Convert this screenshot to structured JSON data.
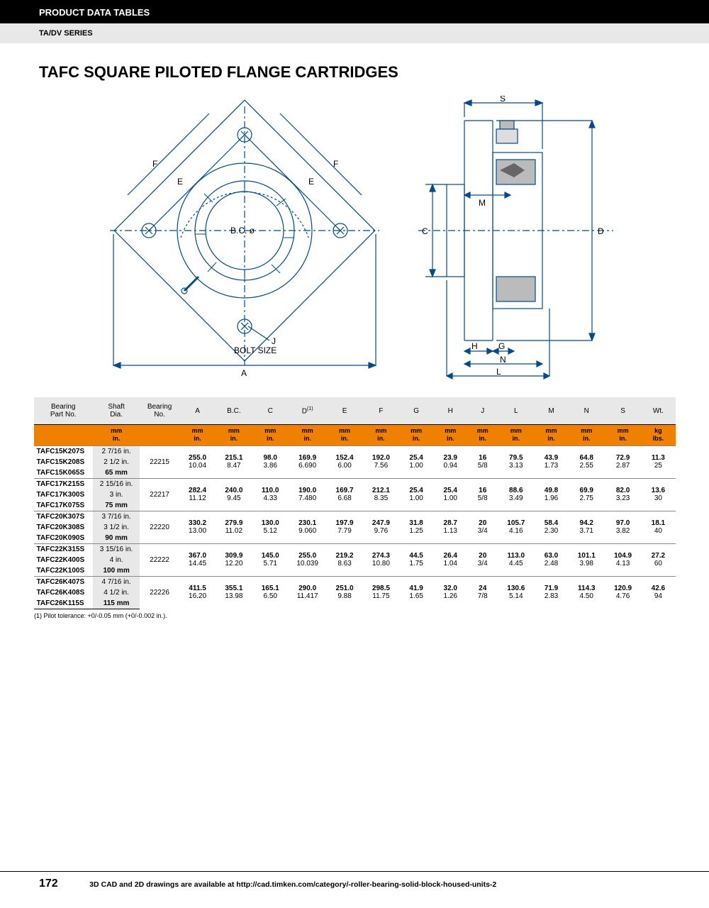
{
  "header": {
    "label": "PRODUCT DATA TABLES",
    "series": "TA/DV SERIES"
  },
  "title": "TAFC SQUARE PILOTED FLANGE CARTRIDGES",
  "diagram": {
    "front_labels": {
      "F1": "F",
      "E1": "E",
      "F2": "F",
      "E2": "E",
      "BC": "B.C. ø",
      "J": "J",
      "bolt": "BOLT SIZE",
      "A": "A"
    },
    "side_labels": {
      "S": "S",
      "C": "C",
      "D": "D",
      "M": "M",
      "H": "H",
      "G": "G",
      "N": "N",
      "L": "L"
    },
    "stroke": "#004a8f",
    "text_color": "#000",
    "fontsize": 11
  },
  "table": {
    "columns": [
      "Bearing\nPart No.",
      "Shaft\nDia.",
      "Bearing\nNo.",
      "A",
      "B.C.",
      "C",
      "D",
      "E",
      "F",
      "G",
      "H",
      "J",
      "L",
      "M",
      "N",
      "S",
      "Wt."
    ],
    "d_sup": "(1)",
    "unit_mm": "mm",
    "unit_in": "in.",
    "unit_kg": "kg",
    "unit_lbs": "lbs.",
    "header_bg": "#e8e8e8",
    "units_bg": "#f08000",
    "groups": [
      {
        "rows": [
          {
            "part": "TAFC15K207S",
            "shaft": "2 7/16 in."
          },
          {
            "part": "TAFC15K208S",
            "shaft": "2 1/2 in."
          },
          {
            "part": "TAFC15K065S",
            "shaft": "65 mm",
            "shaft_bold": true
          }
        ],
        "bearing": "22215",
        "A": {
          "mm": "255.0",
          "in": "10.04"
        },
        "BC": {
          "mm": "215.1",
          "in": "8.47"
        },
        "C": {
          "mm": "98.0",
          "in": "3.86"
        },
        "D": {
          "mm": "169.9",
          "in": "6.690"
        },
        "E": {
          "mm": "152.4",
          "in": "6.00"
        },
        "F": {
          "mm": "192.0",
          "in": "7.56"
        },
        "G": {
          "mm": "25.4",
          "in": "1.00"
        },
        "H": {
          "mm": "23.9",
          "in": "0.94"
        },
        "J": {
          "mm": "16",
          "in": "5/8"
        },
        "L": {
          "mm": "79.5",
          "in": "3.13"
        },
        "M": {
          "mm": "43.9",
          "in": "1.73"
        },
        "N": {
          "mm": "64.8",
          "in": "2.55"
        },
        "S": {
          "mm": "72.9",
          "in": "2.87"
        },
        "Wt": {
          "mm": "11.3",
          "in": "25"
        }
      },
      {
        "rows": [
          {
            "part": "TAFC17K215S",
            "shaft": "2 15/16 in."
          },
          {
            "part": "TAFC17K300S",
            "shaft": "3 in."
          },
          {
            "part": "TAFC17K075S",
            "shaft": "75 mm",
            "shaft_bold": true
          }
        ],
        "bearing": "22217",
        "A": {
          "mm": "282.4",
          "in": "11.12"
        },
        "BC": {
          "mm": "240.0",
          "in": "9.45"
        },
        "C": {
          "mm": "110.0",
          "in": "4.33"
        },
        "D": {
          "mm": "190.0",
          "in": "7.480"
        },
        "E": {
          "mm": "169.7",
          "in": "6.68"
        },
        "F": {
          "mm": "212.1",
          "in": "8.35"
        },
        "G": {
          "mm": "25.4",
          "in": "1.00"
        },
        "H": {
          "mm": "25.4",
          "in": "1.00"
        },
        "J": {
          "mm": "16",
          "in": "5/8"
        },
        "L": {
          "mm": "88.6",
          "in": "3.49"
        },
        "M": {
          "mm": "49.8",
          "in": "1.96"
        },
        "N": {
          "mm": "69.9",
          "in": "2.75"
        },
        "S": {
          "mm": "82.0",
          "in": "3.23"
        },
        "Wt": {
          "mm": "13.6",
          "in": "30"
        }
      },
      {
        "rows": [
          {
            "part": "TAFC20K307S",
            "shaft": "3 7/16 in."
          },
          {
            "part": "TAFC20K308S",
            "shaft": "3 1/2 in."
          },
          {
            "part": "TAFC20K090S",
            "shaft": "90 mm",
            "shaft_bold": true
          }
        ],
        "bearing": "22220",
        "A": {
          "mm": "330.2",
          "in": "13.00"
        },
        "BC": {
          "mm": "279.9",
          "in": "11.02"
        },
        "C": {
          "mm": "130.0",
          "in": "5.12"
        },
        "D": {
          "mm": "230.1",
          "in": "9.060"
        },
        "E": {
          "mm": "197.9",
          "in": "7.79"
        },
        "F": {
          "mm": "247.9",
          "in": "9.76"
        },
        "G": {
          "mm": "31.8",
          "in": "1.25"
        },
        "H": {
          "mm": "28.7",
          "in": "1.13"
        },
        "J": {
          "mm": "20",
          "in": "3/4"
        },
        "L": {
          "mm": "105.7",
          "in": "4.16"
        },
        "M": {
          "mm": "58.4",
          "in": "2.30"
        },
        "N": {
          "mm": "94.2",
          "in": "3.71"
        },
        "S": {
          "mm": "97.0",
          "in": "3.82"
        },
        "Wt": {
          "mm": "18.1",
          "in": "40"
        }
      },
      {
        "rows": [
          {
            "part": "TAFC22K315S",
            "shaft": "3 15/16 in."
          },
          {
            "part": "TAFC22K400S",
            "shaft": "4 in."
          },
          {
            "part": "TAFC22K100S",
            "shaft": "100 mm",
            "shaft_bold": true
          }
        ],
        "bearing": "22222",
        "A": {
          "mm": "367.0",
          "in": "14.45"
        },
        "BC": {
          "mm": "309.9",
          "in": "12.20"
        },
        "C": {
          "mm": "145.0",
          "in": "5.71"
        },
        "D": {
          "mm": "255.0",
          "in": "10.039"
        },
        "E": {
          "mm": "219.2",
          "in": "8.63"
        },
        "F": {
          "mm": "274.3",
          "in": "10.80"
        },
        "G": {
          "mm": "44.5",
          "in": "1.75"
        },
        "H": {
          "mm": "26.4",
          "in": "1.04"
        },
        "J": {
          "mm": "20",
          "in": "3/4"
        },
        "L": {
          "mm": "113.0",
          "in": "4.45"
        },
        "M": {
          "mm": "63.0",
          "in": "2.48"
        },
        "N": {
          "mm": "101.1",
          "in": "3.98"
        },
        "S": {
          "mm": "104.9",
          "in": "4.13"
        },
        "Wt": {
          "mm": "27.2",
          "in": "60"
        }
      },
      {
        "rows": [
          {
            "part": "TAFC26K407S",
            "shaft": "4 7/16 in."
          },
          {
            "part": "TAFC26K408S",
            "shaft": "4 1/2 in."
          },
          {
            "part": "TAFC26K115S",
            "shaft": "115 mm",
            "shaft_bold": true
          }
        ],
        "bearing": "22226",
        "A": {
          "mm": "411.5",
          "in": "16.20"
        },
        "BC": {
          "mm": "355.1",
          "in": "13.98"
        },
        "C": {
          "mm": "165.1",
          "in": "6.50"
        },
        "D": {
          "mm": "290.0",
          "in": "11.417"
        },
        "E": {
          "mm": "251.0",
          "in": "9.88"
        },
        "F": {
          "mm": "298.5",
          "in": "11.75"
        },
        "G": {
          "mm": "41.9",
          "in": "1.65"
        },
        "H": {
          "mm": "32.0",
          "in": "1.26"
        },
        "J": {
          "mm": "24",
          "in": "7/8"
        },
        "L": {
          "mm": "130.6",
          "in": "5.14"
        },
        "M": {
          "mm": "71.9",
          "in": "2.83"
        },
        "N": {
          "mm": "114.3",
          "in": "4.50"
        },
        "S": {
          "mm": "120.9",
          "in": "4.76"
        },
        "Wt": {
          "mm": "42.6",
          "in": "94"
        }
      }
    ]
  },
  "footnote": "(1) Pilot tolerance: +0/-0.05 mm (+0/-0.002 in.).",
  "footer": {
    "page": "172",
    "text": "3D CAD and 2D drawings are available at http://cad.timken.com/category/-roller-bearing-solid-block-housed-units-2"
  }
}
